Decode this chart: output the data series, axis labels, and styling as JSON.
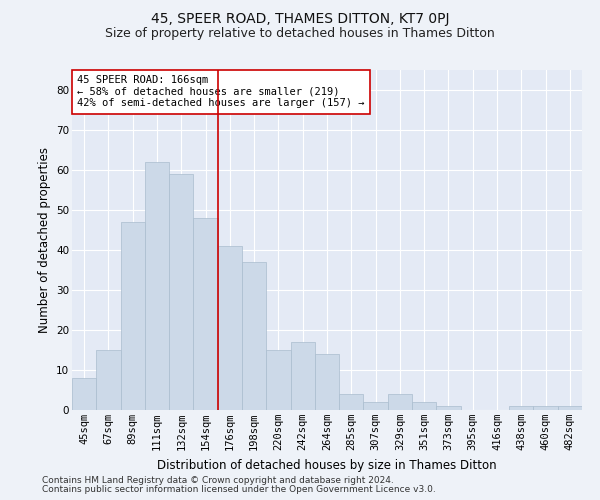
{
  "title": "45, SPEER ROAD, THAMES DITTON, KT7 0PJ",
  "subtitle": "Size of property relative to detached houses in Thames Ditton",
  "xlabel": "Distribution of detached houses by size in Thames Ditton",
  "ylabel": "Number of detached properties",
  "bar_labels": [
    "45sqm",
    "67sqm",
    "89sqm",
    "111sqm",
    "132sqm",
    "154sqm",
    "176sqm",
    "198sqm",
    "220sqm",
    "242sqm",
    "264sqm",
    "285sqm",
    "307sqm",
    "329sqm",
    "351sqm",
    "373sqm",
    "395sqm",
    "416sqm",
    "438sqm",
    "460sqm",
    "482sqm"
  ],
  "bar_values": [
    8,
    15,
    47,
    62,
    59,
    48,
    41,
    37,
    15,
    17,
    14,
    4,
    2,
    4,
    2,
    1,
    0,
    0,
    1,
    1,
    1
  ],
  "bar_color": "#ccd9e8",
  "bar_edge_color": "#aabcce",
  "vline_x": 5.5,
  "vline_color": "#cc0000",
  "annotation_text": "45 SPEER ROAD: 166sqm\n← 58% of detached houses are smaller (219)\n42% of semi-detached houses are larger (157) →",
  "annotation_box_color": "#ffffff",
  "annotation_box_edge": "#cc0000",
  "annotation_fontsize": 7.5,
  "title_fontsize": 10,
  "subtitle_fontsize": 9,
  "xlabel_fontsize": 8.5,
  "ylabel_fontsize": 8.5,
  "tick_fontsize": 7.5,
  "ylim": [
    0,
    85
  ],
  "yticks": [
    0,
    10,
    20,
    30,
    40,
    50,
    60,
    70,
    80
  ],
  "footer1": "Contains HM Land Registry data © Crown copyright and database right 2024.",
  "footer2": "Contains public sector information licensed under the Open Government Licence v3.0.",
  "bg_color": "#eef2f8",
  "plot_bg_color": "#e4eaf5"
}
